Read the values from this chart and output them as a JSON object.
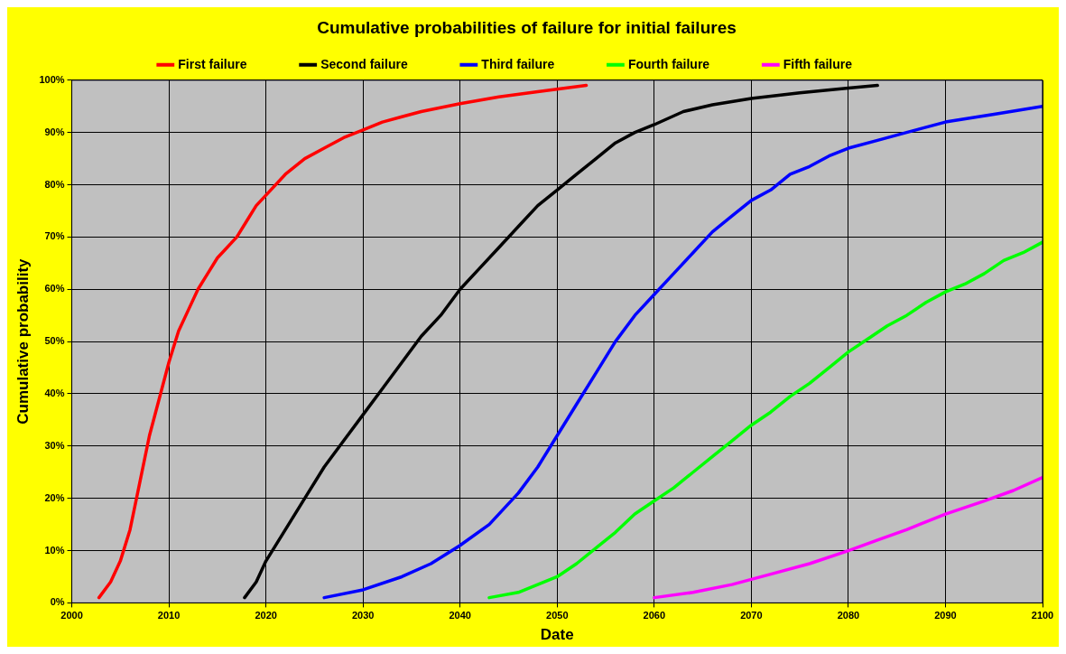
{
  "chart_data": {
    "type": "line",
    "title": "Cumulative probabilities of failure for initial failures",
    "xlabel": "Date",
    "ylabel": "Cumulative probability",
    "xlim": [
      2000,
      2100
    ],
    "xticks": [
      2000,
      2010,
      2020,
      2030,
      2040,
      2050,
      2060,
      2070,
      2080,
      2090,
      2100
    ],
    "ylim": [
      0,
      100
    ],
    "yticks": [
      {
        "value": 0,
        "label": "0%"
      },
      {
        "value": 10,
        "label": "10%"
      },
      {
        "value": 20,
        "label": "20%"
      },
      {
        "value": 30,
        "label": "30%"
      },
      {
        "value": 40,
        "label": "40%"
      },
      {
        "value": 50,
        "label": "50%"
      },
      {
        "value": 60,
        "label": "60%"
      },
      {
        "value": 70,
        "label": "70%"
      },
      {
        "value": 80,
        "label": "80%"
      },
      {
        "value": 90,
        "label": "90%"
      },
      {
        "value": 100,
        "label": "100%"
      }
    ],
    "grid": true,
    "legend": "top",
    "marker": "none",
    "line_style": "solid",
    "series": [
      {
        "name": "First failure",
        "color": "#ff0000",
        "x": [
          2002.8,
          2004,
          2005,
          2006,
          2007,
          2008,
          2009,
          2010,
          2011,
          2012,
          2013,
          2014,
          2015,
          2016,
          2017,
          2018,
          2019,
          2020,
          2022,
          2024,
          2026,
          2028,
          2030,
          2032,
          2034,
          2036,
          2040,
          2044,
          2048,
          2053
        ],
        "values": [
          1,
          4,
          8,
          14,
          23,
          32,
          39,
          46,
          52,
          56,
          60,
          63,
          66,
          68,
          70,
          73,
          76,
          78,
          82,
          85,
          87,
          89,
          90.5,
          92,
          93,
          94,
          95.5,
          96.8,
          97.8,
          99
        ]
      },
      {
        "name": "Second failure",
        "color": "#000000",
        "x": [
          2017.8,
          2019,
          2020,
          2022,
          2024,
          2026,
          2028,
          2030,
          2032,
          2034,
          2036,
          2038,
          2040,
          2042,
          2044,
          2046,
          2048,
          2050,
          2052,
          2054,
          2056,
          2058,
          2060,
          2063,
          2066,
          2070,
          2075,
          2080,
          2083
        ],
        "values": [
          1,
          4,
          8,
          14,
          20,
          26,
          31,
          36,
          41,
          46,
          51,
          55,
          60,
          64,
          68,
          72,
          76,
          79,
          82,
          85,
          88,
          90,
          91.5,
          94,
          95.3,
          96.5,
          97.6,
          98.5,
          99
        ]
      },
      {
        "name": "Third failure",
        "color": "#0000ff",
        "x": [
          2026,
          2030,
          2034,
          2037,
          2040,
          2043,
          2046,
          2048,
          2050,
          2052,
          2054,
          2056,
          2058,
          2060,
          2062,
          2064,
          2066,
          2068,
          2070,
          2072,
          2074,
          2076,
          2078,
          2080,
          2083,
          2086,
          2090,
          2095,
          2100
        ],
        "values": [
          1,
          2.5,
          5,
          7.5,
          11,
          15,
          21,
          26,
          32,
          38,
          44,
          50,
          55,
          59,
          63,
          67,
          71,
          74,
          77,
          79,
          82,
          83.5,
          85.5,
          87,
          88.5,
          90,
          92,
          93.5,
          95
        ]
      },
      {
        "name": "Fourth failure",
        "color": "#00ff00",
        "x": [
          2043,
          2046,
          2048,
          2050,
          2052,
          2054,
          2056,
          2058,
          2060,
          2062,
          2064,
          2066,
          2068,
          2070,
          2072,
          2074,
          2076,
          2078,
          2080,
          2082,
          2084,
          2086,
          2088,
          2090,
          2092,
          2094,
          2096,
          2098,
          2100
        ],
        "values": [
          1,
          2,
          3.5,
          5,
          7.5,
          10.5,
          13.5,
          17,
          19.5,
          22,
          25,
          28,
          31,
          34,
          36.5,
          39.5,
          42,
          45,
          48,
          50.5,
          53,
          55,
          57.5,
          59.5,
          61,
          63,
          65.5,
          67,
          69
        ]
      },
      {
        "name": "Fifth failure",
        "color": "#ff00ff",
        "x": [
          2060,
          2064,
          2068,
          2072,
          2076,
          2080,
          2083,
          2086,
          2090,
          2094,
          2097,
          2100
        ],
        "values": [
          1,
          2,
          3.5,
          5.5,
          7.5,
          10,
          12,
          14,
          17,
          19.5,
          21.5,
          24
        ]
      }
    ]
  }
}
